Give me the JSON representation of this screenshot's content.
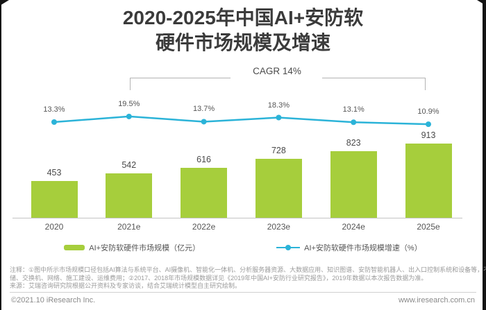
{
  "title": {
    "line1": "2020-2025年中国AI+安防软",
    "line2": "硬件市场规模及增速"
  },
  "chart_data": {
    "type": "bar",
    "subtype": "bar-line-combo",
    "title": "2020-2025年中国AI+安防软硬件市场规模及增速",
    "categories": [
      "2020",
      "2021e",
      "2022e",
      "2023e",
      "2024e",
      "2025e"
    ],
    "series": [
      {
        "name": "AI+安防软硬件市场规模（亿元）",
        "type": "bar",
        "unit": "亿元",
        "color": "#a6ce3c",
        "values": [
          453,
          542,
          616,
          728,
          823,
          913
        ],
        "labels": [
          "453",
          "542",
          "616",
          "728",
          "823",
          "913"
        ]
      },
      {
        "name": "AI+安防软硬件市场规模增速（%）",
        "type": "line",
        "unit": "%",
        "color": "#2bb3d8",
        "values": [
          13.3,
          19.5,
          13.7,
          18.3,
          13.1,
          10.9
        ],
        "labels": [
          "13.3%",
          "19.5%",
          "13.7%",
          "18.3%",
          "13.1%",
          "10.9%"
        ]
      }
    ],
    "annotation": "CAGR 14%",
    "annotation_span": [
      "2021e",
      "2025e"
    ],
    "legend_position": "bottom",
    "grid": false
  },
  "notes": {
    "lines": [
      "注释：①图中所示市场规模口径包括AI算法与系统平台、AI摄像机、智能化一体机、分析服务器资源、大数据应用、知识图谱、安防智能机器人、出入口控制系统和设备等，不含存",
      "储、交换机、网络、施工建设、运维费用；②2017、2018年市场规模数据详见《2019年中国AI+安防行业研究报告》，2019年数据以本次报告数据为准。",
      "来源：艾瑞咨询研究院根据公开资料及专家访谈，结合艾瑞统计模型自主研究绘制。"
    ]
  },
  "footer": {
    "copyright": "©2021.10 iResearch Inc.",
    "website": "www.iresearch.com.cn"
  }
}
